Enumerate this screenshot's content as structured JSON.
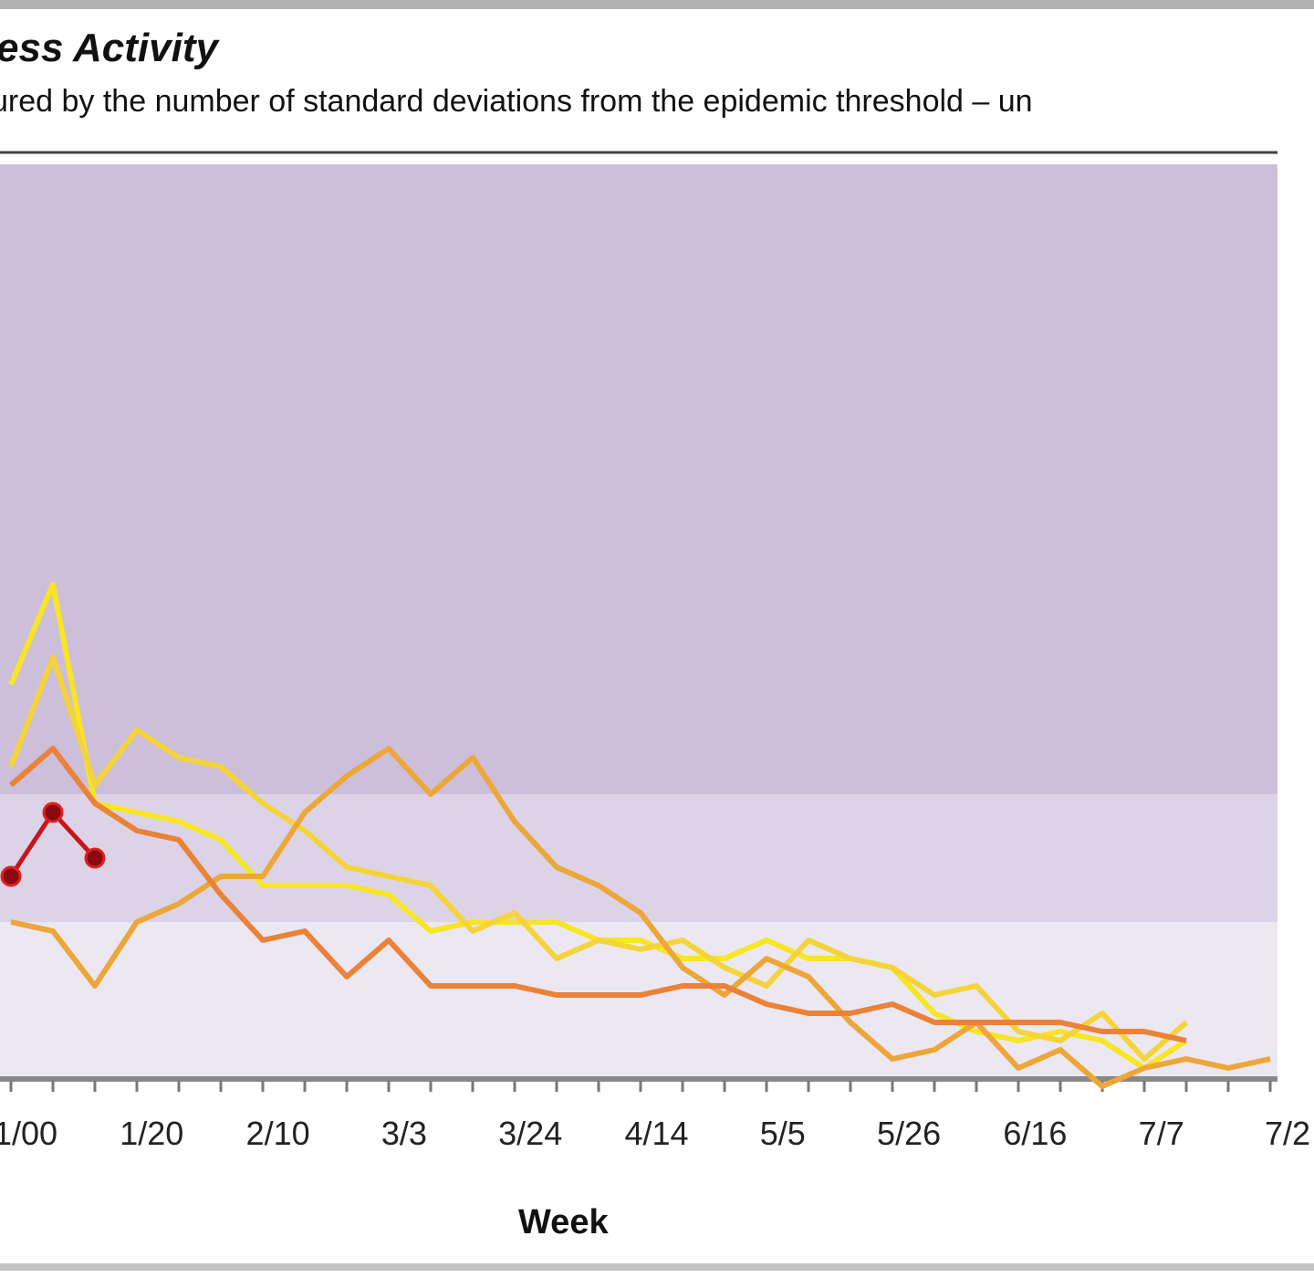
{
  "header": {
    "title": "ess Activity",
    "subtitle": "ured by the number of standard deviations from the epidemic threshold – un"
  },
  "chart_data": {
    "type": "line",
    "title": "ess Activity",
    "subtitle": "ured by the number of standard deviations from the epidemic threshold – un",
    "xlabel": "Week",
    "ylabel": "",
    "x_tick_labels": [
      "1/00",
      "1/20",
      "2/10",
      "3/3",
      "3/24",
      "4/14",
      "5/5",
      "5/26",
      "6/16",
      "7/7",
      "7/2"
    ],
    "ylim": [
      0,
      10
    ],
    "bands": [
      {
        "from": 0,
        "to": 1.7,
        "color": "#ece8f2"
      },
      {
        "from": 1.7,
        "to": 3.1,
        "color": "#dcd4e6"
      },
      {
        "from": 3.1,
        "to": 10,
        "color": "#cdbfd9"
      }
    ],
    "series": [
      {
        "color": "#f7e526",
        "values": [
          4.3,
          5.4,
          3.0,
          2.9,
          2.8,
          2.6,
          2.1,
          2.1,
          2.1,
          2.0,
          1.6,
          1.7,
          1.7,
          1.7,
          1.5,
          1.5,
          1.3,
          1.3,
          1.5,
          1.3,
          1.3,
          1.2,
          0.7,
          0.5,
          0.4,
          0.5,
          0.4,
          0.1,
          0.4
        ]
      },
      {
        "color": "#f4d43a",
        "values": [
          3.4,
          4.6,
          3.2,
          3.8,
          3.5,
          3.4,
          3.0,
          2.7,
          2.3,
          2.2,
          2.1,
          1.6,
          1.8,
          1.3,
          1.5,
          1.4,
          1.5,
          1.2,
          1.0,
          1.5,
          1.3,
          1.2,
          0.9,
          1.0,
          0.5,
          0.4,
          0.7,
          0.2,
          0.6
        ]
      },
      {
        "color": "#eda63a",
        "values": [
          1.7,
          1.6,
          1.0,
          1.7,
          1.9,
          2.2,
          2.2,
          2.9,
          3.3,
          3.6,
          3.1,
          3.5,
          2.8,
          2.3,
          2.1,
          1.8,
          1.2,
          0.9,
          1.3,
          1.1,
          0.6,
          0.2,
          0.3,
          0.6,
          0.1,
          0.3,
          -0.1,
          0.1,
          0.2,
          0.1,
          0.2
        ]
      },
      {
        "color": "#ea8238",
        "values": [
          3.2,
          3.6,
          3.0,
          2.7,
          2.6,
          2.0,
          1.5,
          1.6,
          1.1,
          1.5,
          1.0,
          1.0,
          1.0,
          0.9,
          0.9,
          0.9,
          1.0,
          1.0,
          0.8,
          0.7,
          0.7,
          0.8,
          0.6,
          0.6,
          0.6,
          0.6,
          0.5,
          0.5,
          0.4
        ]
      },
      {
        "color": "#c8151b",
        "markers": true,
        "values": [
          2.2,
          2.9,
          2.4
        ]
      }
    ]
  }
}
